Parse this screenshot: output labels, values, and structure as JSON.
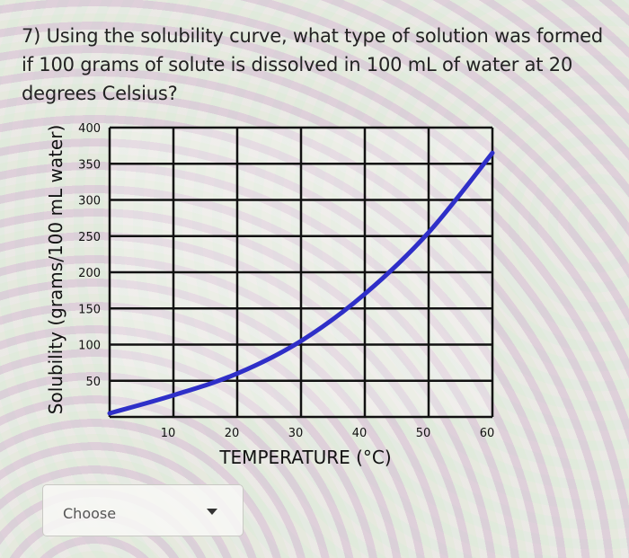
{
  "question": {
    "text": "7) Using the solubility curve, what type of solution was formed if 100 grams of solute is dissolved in 100 mL of water at 20 degrees Celsius?"
  },
  "answer_select": {
    "placeholder": "Choose",
    "icon": "chevron-down-icon"
  },
  "chart_data": {
    "type": "line",
    "xlabel": "TEMPERATURE (°C)",
    "ylabel": "Solubility (grams/100 mL water)",
    "x_ticks": [
      10,
      20,
      30,
      40,
      50,
      60
    ],
    "y_ticks": [
      50,
      100,
      150,
      200,
      250,
      300,
      350,
      400
    ],
    "xlim": [
      0,
      60
    ],
    "ylim": [
      0,
      400
    ],
    "grid": true,
    "series": [
      {
        "color": "#2f2fc8",
        "x": [
          0,
          10,
          20,
          30,
          40,
          50,
          60
        ],
        "y": [
          5,
          30,
          60,
          105,
          170,
          255,
          365
        ]
      }
    ]
  }
}
